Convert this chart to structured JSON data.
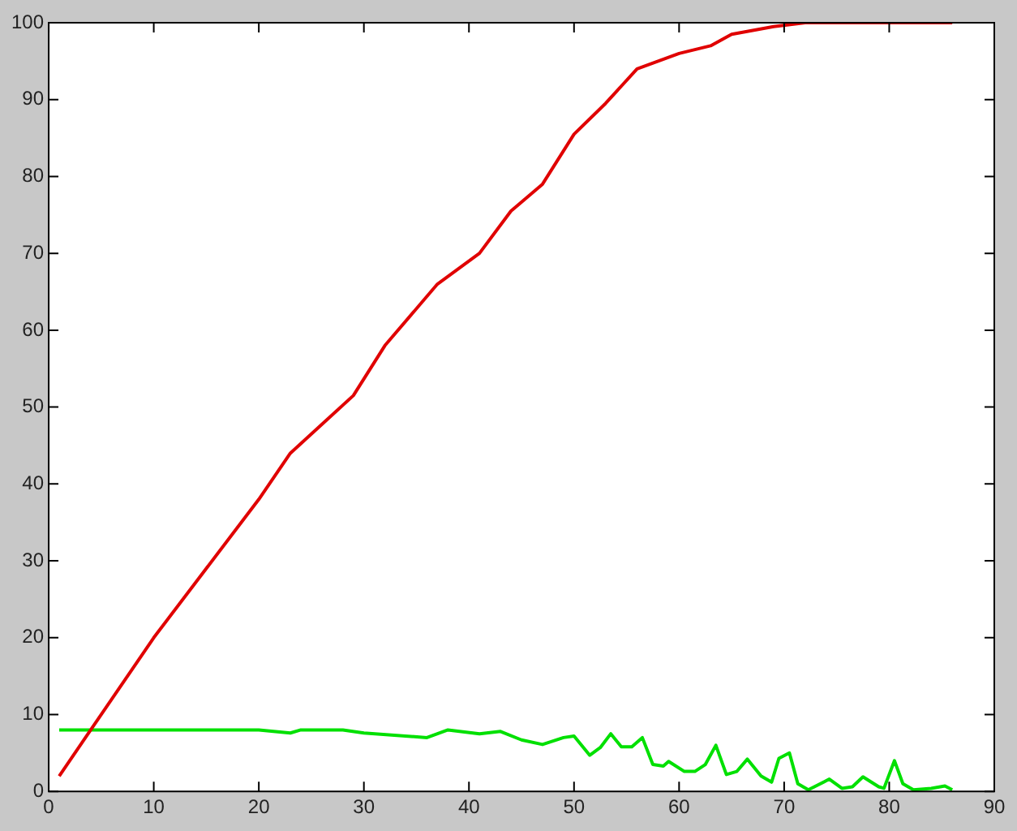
{
  "chart_data": {
    "type": "line",
    "xlim": [
      0,
      90
    ],
    "xticks": [
      0,
      10,
      20,
      30,
      40,
      50,
      60,
      70,
      80,
      90
    ],
    "ylim": [
      0,
      100
    ],
    "yticks": [
      0,
      10,
      20,
      30,
      40,
      50,
      60,
      70,
      80,
      90,
      100
    ],
    "grid": false,
    "legend": false,
    "marker": "none",
    "line_style": "solid",
    "series": [
      {
        "color": "#e00000",
        "x": [
          1,
          4,
          10,
          15,
          20,
          23,
          25,
          29,
          32,
          37,
          41,
          44,
          47,
          50,
          53,
          56,
          60,
          63,
          65,
          69,
          72,
          86
        ],
        "values": [
          2,
          8,
          20,
          29,
          38,
          44,
          46.5,
          51.5,
          58,
          66,
          70,
          75.5,
          79,
          85.5,
          89.5,
          94,
          96,
          97,
          98.5,
          99.5,
          100,
          100
        ]
      },
      {
        "color": "#00e000",
        "x": [
          1,
          20,
          23,
          24,
          28,
          30,
          36,
          38,
          41,
          43,
          45,
          47,
          49,
          50,
          51.5,
          52.5,
          53.5,
          54.5,
          55.5,
          56.5,
          57.5,
          58.5,
          59,
          60.5,
          61.5,
          62.5,
          63.5,
          64.5,
          65.5,
          66.5,
          67.8,
          68.8,
          69.5,
          70.5,
          71.3,
          72.3,
          74.3,
          75.5,
          76.5,
          77.5,
          79,
          79.5,
          80.5,
          81.3,
          82.3,
          84,
          85.3,
          86
        ],
        "values": [
          8,
          8,
          7.6,
          8,
          8,
          7.6,
          7,
          8,
          7.5,
          7.8,
          6.7,
          6.1,
          7,
          7.2,
          4.7,
          5.7,
          7.5,
          5.8,
          5.8,
          7,
          3.5,
          3.3,
          3.9,
          2.6,
          2.6,
          3.5,
          6,
          2.2,
          2.6,
          4.2,
          2,
          1.2,
          4.3,
          5,
          1,
          0.2,
          1.6,
          0.4,
          0.6,
          1.9,
          0.6,
          0.4,
          4,
          1,
          0.2,
          0.4,
          0.7,
          0.2
        ]
      }
    ]
  }
}
